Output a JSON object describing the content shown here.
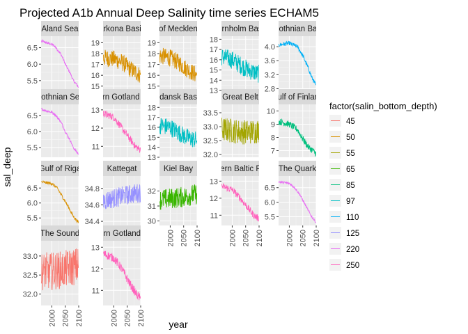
{
  "figure": {
    "title": "Projected A1b Annual Deep Salinity time series ECHAM5",
    "xlabel": "year",
    "ylabel": "sal_deep"
  },
  "legend": {
    "title": "factor(salin_bottom_depth)",
    "items": [
      {
        "label": "45",
        "color": "#F8766D"
      },
      {
        "label": "50",
        "color": "#D89000"
      },
      {
        "label": "55",
        "color": "#A3A500"
      },
      {
        "label": "65",
        "color": "#39B600"
      },
      {
        "label": "85",
        "color": "#00BF7D"
      },
      {
        "label": "97",
        "color": "#00BFC4"
      },
      {
        "label": "110",
        "color": "#00B0F6"
      },
      {
        "label": "125",
        "color": "#9590FF"
      },
      {
        "label": "220",
        "color": "#E76BF3"
      },
      {
        "label": "250",
        "color": "#FF62BC"
      }
    ]
  },
  "chart_data": {
    "type": "line",
    "facets": "free_y",
    "x_ticks": [
      "2000",
      "2050",
      "2100"
    ],
    "xlim": [
      1960,
      2100
    ],
    "panels": [
      {
        "strip": "Aland Sea",
        "depth": "220",
        "color": "#E76BF3",
        "yticks": [
          "5.5",
          "6.0",
          "6.5"
        ],
        "ylim": [
          5.2,
          6.85
        ],
        "series": {
          "x": [
            1961,
            1980,
            2000,
            2010,
            2030,
            2040,
            2050,
            2060,
            2070,
            2080,
            2090,
            2099
          ],
          "y": [
            6.7,
            6.65,
            6.6,
            6.55,
            6.35,
            6.2,
            6.0,
            5.85,
            5.7,
            5.5,
            5.4,
            5.3
          ]
        },
        "noise": 0.04
      },
      {
        "strip": "Arkona Basin",
        "depth": "50",
        "color": "#D89000",
        "yticks": [
          "15",
          "16",
          "17",
          "18",
          "19"
        ],
        "ylim": [
          14.6,
          19.6
        ],
        "series": {
          "x": [
            1961,
            2000,
            2030,
            2060,
            2099
          ],
          "y": [
            17.6,
            17.5,
            17.2,
            16.6,
            16.0
          ]
        },
        "noise": 0.8
      },
      {
        "strip": "Bay of Mecklenburg",
        "depth": "50",
        "color": "#D89000",
        "yticks": [
          "15",
          "16",
          "17",
          "18",
          "19"
        ],
        "ylim": [
          14.6,
          19.6
        ],
        "series": {
          "x": [
            1961,
            2000,
            2030,
            2060,
            2099
          ],
          "y": [
            17.8,
            17.6,
            17.2,
            16.6,
            16.0
          ]
        },
        "noise": 0.8
      },
      {
        "strip": "Bornholm Basin",
        "depth": "97",
        "color": "#00BFC4",
        "yticks": [
          "13",
          "14",
          "15",
          "16",
          "17",
          "18"
        ],
        "ylim": [
          13.0,
          18.3
        ],
        "series": {
          "x": [
            1961,
            2000,
            2030,
            2060,
            2099
          ],
          "y": [
            16.3,
            16.0,
            15.5,
            15.0,
            14.6
          ]
        },
        "noise": 0.9
      },
      {
        "strip": "Bothnian Bay",
        "depth": "110",
        "color": "#00B0F6",
        "yticks": [
          "2.8",
          "3.2",
          "3.6",
          "4.0"
        ],
        "ylim": [
          2.75,
          4.3
        ],
        "series": {
          "x": [
            1961,
            2000,
            2030,
            2050,
            2070,
            2085,
            2099
          ],
          "y": [
            4.05,
            4.1,
            4.0,
            3.75,
            3.4,
            3.1,
            2.9
          ]
        },
        "noise": 0.06
      },
      {
        "strip": "Bothnian Sea",
        "depth": "220",
        "color": "#E76BF3",
        "yticks": [
          "5.5",
          "6.0",
          "6.5"
        ],
        "ylim": [
          5.2,
          6.85
        ],
        "series": {
          "x": [
            1961,
            1980,
            2000,
            2010,
            2030,
            2040,
            2050,
            2060,
            2070,
            2080,
            2090,
            2099
          ],
          "y": [
            6.7,
            6.65,
            6.6,
            6.55,
            6.35,
            6.2,
            6.0,
            5.85,
            5.7,
            5.5,
            5.4,
            5.3
          ]
        },
        "noise": 0.04
      },
      {
        "strip": "Eastern Gotland Basin",
        "depth": "250",
        "color": "#FF62BC",
        "yticks": [
          "11",
          "12",
          "13"
        ],
        "ylim": [
          10.4,
          13.3
        ],
        "series": {
          "x": [
            1961,
            2000,
            2030,
            2060,
            2080,
            2099
          ],
          "y": [
            12.8,
            12.6,
            12.0,
            11.4,
            11.0,
            10.8
          ]
        },
        "noise": 0.2
      },
      {
        "strip": "Gdansk Basin",
        "depth": "97",
        "color": "#00BFC4",
        "yticks": [
          "13",
          "14",
          "15",
          "16",
          "17",
          "18"
        ],
        "ylim": [
          13.0,
          18.3
        ],
        "series": {
          "x": [
            1961,
            2000,
            2030,
            2060,
            2099
          ],
          "y": [
            16.2,
            16.0,
            15.5,
            15.0,
            14.7
          ]
        },
        "noise": 0.9
      },
      {
        "strip": "Great Belt",
        "depth": "55",
        "color": "#A3A500",
        "yticks": [
          "32.0",
          "32.5",
          "33.0",
          "33.5"
        ],
        "ylim": [
          31.9,
          33.8
        ],
        "series": {
          "x": [
            1961,
            2000,
            2050,
            2099
          ],
          "y": [
            32.9,
            32.85,
            32.8,
            32.85
          ]
        },
        "noise": 0.45
      },
      {
        "strip": "Gulf of Finland",
        "depth": "85",
        "color": "#00BF7D",
        "yticks": [
          "7",
          "8",
          "9",
          "10"
        ],
        "ylim": [
          6.5,
          10.5
        ],
        "series": {
          "x": [
            1961,
            2000,
            2030,
            2050,
            2070,
            2099
          ],
          "y": [
            9.2,
            9.0,
            8.6,
            7.9,
            7.3,
            6.8
          ]
        },
        "noise": 0.25
      },
      {
        "strip": "Gulf of Riga",
        "depth": "50",
        "color": "#D89000",
        "yticks": [
          "5.5",
          "6.0",
          "6.5"
        ],
        "ylim": [
          5.25,
          6.9
        ],
        "series": {
          "x": [
            1961,
            2000,
            2020,
            2040,
            2060,
            2080,
            2099
          ],
          "y": [
            6.7,
            6.65,
            6.5,
            6.2,
            5.9,
            5.55,
            5.35
          ]
        },
        "noise": 0.05
      },
      {
        "strip": "Kattegat",
        "depth": "125",
        "color": "#9590FF",
        "yticks": [
          "34.4",
          "34.6",
          "34.8"
        ],
        "ylim": [
          34.35,
          34.95
        ],
        "series": {
          "x": [
            1961,
            2000,
            2050,
            2099
          ],
          "y": [
            34.65,
            34.68,
            34.72,
            34.75
          ]
        },
        "noise": 0.12
      },
      {
        "strip": "Kiel Bay",
        "depth": "65",
        "color": "#39B600",
        "yticks": [
          "30",
          "31",
          "32"
        ],
        "ylim": [
          29.7,
          33.0
        ],
        "series": {
          "x": [
            1961,
            2000,
            2050,
            2099
          ],
          "y": [
            31.4,
            31.5,
            31.6,
            31.8
          ]
        },
        "noise": 0.7
      },
      {
        "strip": "Northern Baltic Proper",
        "depth": "250",
        "color": "#FF62BC",
        "yticks": [
          "11",
          "12",
          "13"
        ],
        "ylim": [
          10.4,
          13.3
        ],
        "series": {
          "x": [
            1961,
            2000,
            2030,
            2060,
            2080,
            2099
          ],
          "y": [
            12.7,
            12.5,
            12.0,
            11.4,
            11.0,
            10.8
          ]
        },
        "noise": 0.2
      },
      {
        "strip": "The Quark",
        "depth": "220",
        "color": "#E76BF3",
        "yticks": [
          "5.5",
          "6.0",
          "6.5"
        ],
        "ylim": [
          5.2,
          6.9
        ],
        "series": {
          "x": [
            1961,
            2000,
            2020,
            2040,
            2060,
            2080,
            2099
          ],
          "y": [
            6.7,
            6.65,
            6.5,
            6.25,
            5.9,
            5.55,
            5.3
          ]
        },
        "noise": 0.04
      },
      {
        "strip": "The Sound",
        "depth": "45",
        "color": "#F8766D",
        "yticks": [
          "32.0",
          "32.5",
          "33.0"
        ],
        "ylim": [
          31.7,
          33.4
        ],
        "series": {
          "x": [
            1961,
            2000,
            2050,
            2099
          ],
          "y": [
            32.6,
            32.6,
            32.65,
            32.75
          ]
        },
        "noise": 0.5
      },
      {
        "strip": "Western Gotland Basin",
        "depth": "250",
        "color": "#FF62BC",
        "yticks": [
          "11",
          "12",
          "13"
        ],
        "ylim": [
          10.3,
          13.3
        ],
        "series": {
          "x": [
            1961,
            2000,
            2030,
            2060,
            2080,
            2099
          ],
          "y": [
            12.7,
            12.5,
            12.0,
            11.3,
            10.9,
            10.6
          ]
        },
        "noise": 0.2
      }
    ]
  }
}
